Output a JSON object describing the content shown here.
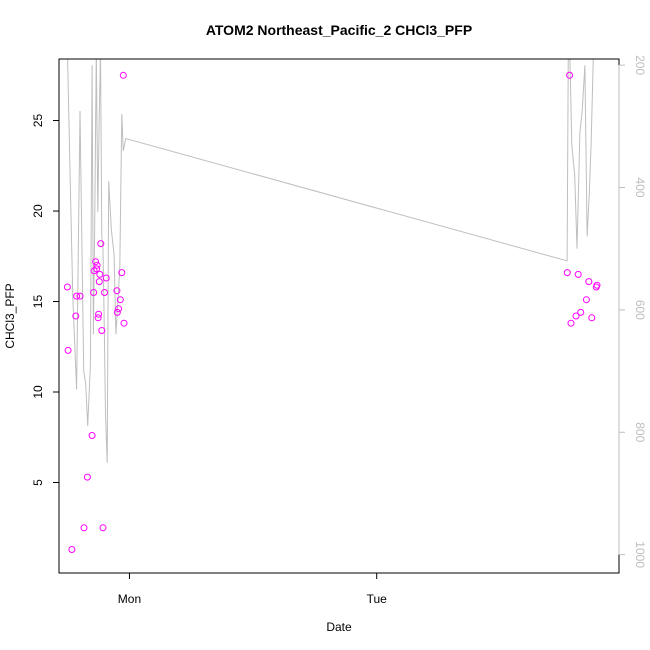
{
  "chart_data": {
    "type": "scatter",
    "title": "ATOM2 Northeast_Pacific_2 CHCl3_PFP",
    "xlabel": "Date",
    "ylabel": "CHCl3_PFP",
    "x_ticks": [
      {
        "label": "Mon",
        "value": 0
      },
      {
        "label": "Tue",
        "value": 1
      }
    ],
    "xlim": [
      -0.285,
      1.98
    ],
    "ylim": [
      0.0,
      28.4
    ],
    "y_ticks": [
      5,
      10,
      15,
      20,
      25
    ],
    "y2_ticks": [
      200,
      400,
      600,
      800,
      1000
    ],
    "y2lim": [
      1030,
      190
    ],
    "grid": false,
    "legend": "none",
    "colors": {
      "points": "#ff00ff",
      "line": "#bebebe",
      "axis": "#000000",
      "right_axis": "#bebebe"
    },
    "series": [
      {
        "kind": "points",
        "axis": "left",
        "x": [
          -0.251,
          -0.248,
          -0.233,
          -0.217,
          -0.214,
          -0.2,
          -0.184,
          -0.17,
          -0.151,
          -0.145,
          -0.143,
          -0.137,
          -0.133,
          -0.131,
          -0.127,
          -0.125,
          -0.122,
          -0.12,
          -0.116,
          -0.112,
          -0.107,
          -0.101,
          -0.094,
          -0.051,
          -0.049,
          -0.044,
          -0.037,
          -0.031,
          -0.025,
          -0.022,
          1.771,
          1.78,
          1.786,
          1.806,
          1.815,
          1.825,
          1.848,
          1.858,
          1.87,
          1.888,
          1.891
        ],
        "y": [
          15.8,
          12.3,
          1.3,
          14.2,
          15.3,
          15.3,
          2.5,
          5.3,
          7.6,
          15.5,
          16.7,
          17.2,
          16.8,
          17.0,
          14.1,
          14.3,
          16.1,
          16.5,
          18.2,
          13.4,
          2.5,
          15.5,
          16.3,
          15.6,
          14.4,
          14.6,
          15.1,
          16.6,
          27.5,
          13.8,
          16.6,
          27.5,
          13.8,
          14.2,
          16.5,
          14.4,
          15.1,
          16.1,
          14.1,
          15.8,
          15.9
        ]
      },
      {
        "kind": "line",
        "axis": "right",
        "x": [
          -0.251,
          -0.24,
          -0.229,
          -0.214,
          -0.2,
          -0.185,
          -0.177,
          -0.169,
          -0.158,
          -0.151,
          -0.146,
          -0.141,
          -0.134,
          -0.128,
          -0.122,
          -0.117,
          -0.112,
          -0.107,
          -0.102,
          -0.097,
          -0.09,
          -0.084,
          -0.073,
          -0.062,
          -0.055,
          -0.047,
          -0.039,
          -0.031,
          -0.025,
          -0.015,
          1.77,
          1.775,
          1.781,
          1.789,
          1.801,
          1.81,
          1.822,
          1.831,
          1.842,
          1.851,
          1.86,
          1.867,
          1.877,
          1.888,
          1.891
        ],
        "y": [
          175,
          380,
          580,
          730,
          275,
          700,
          720,
          790,
          690,
          200,
          640,
          480,
          175,
          440,
          280,
          175,
          480,
          500,
          620,
          770,
          850,
          390,
          470,
          510,
          640,
          590,
          530,
          280,
          340,
          320,
          520,
          175,
          180,
          330,
          380,
          500,
          310,
          275,
          200,
          480,
          410,
          330,
          175,
          190,
          175
        ]
      }
    ]
  }
}
